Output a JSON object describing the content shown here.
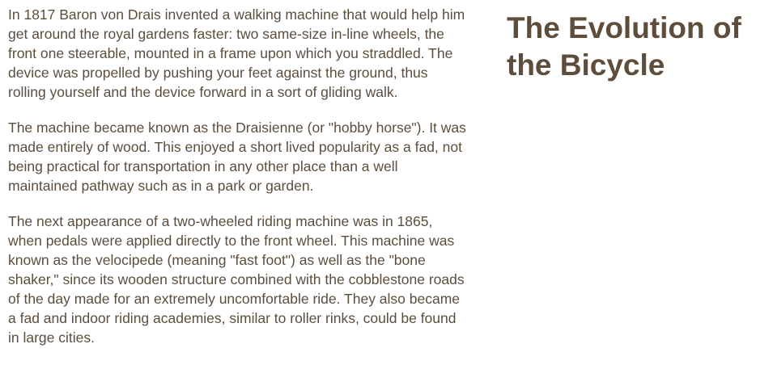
{
  "page": {
    "title": "The Evolution of the Bicycle"
  },
  "article": {
    "paragraphs": [
      "In 1817 Baron von Drais invented a walking machine that would help him get around the royal gardens faster: two same-size in-line wheels, the front one steerable, mounted in a frame upon which you straddled. The device was propelled by pushing your feet against the ground, thus rolling yourself and the device forward in a sort of gliding walk.",
      "The machine became known as the Draisienne (or \"hobby horse\"). It was made entirely of wood. This enjoyed a short lived popularity as a fad, not being practical for transportation in any other place than a well maintained pathway such as in a park or garden.",
      "The next appearance of a two-wheeled riding machine was in 1865, when pedals were applied directly to the front wheel. This machine was known as the velocipede (meaning \"fast foot\") as well as the \"bone shaker,\" since its wooden structure combined with the cobblestone roads of the day made for an extremely uncomfortable ride. They also became a fad and indoor riding academies, similar to roller rinks, could be found in large cities."
    ]
  },
  "colors": {
    "text": "#5c4e3f",
    "title": "#5e4d3b",
    "background": "#ffffff"
  }
}
